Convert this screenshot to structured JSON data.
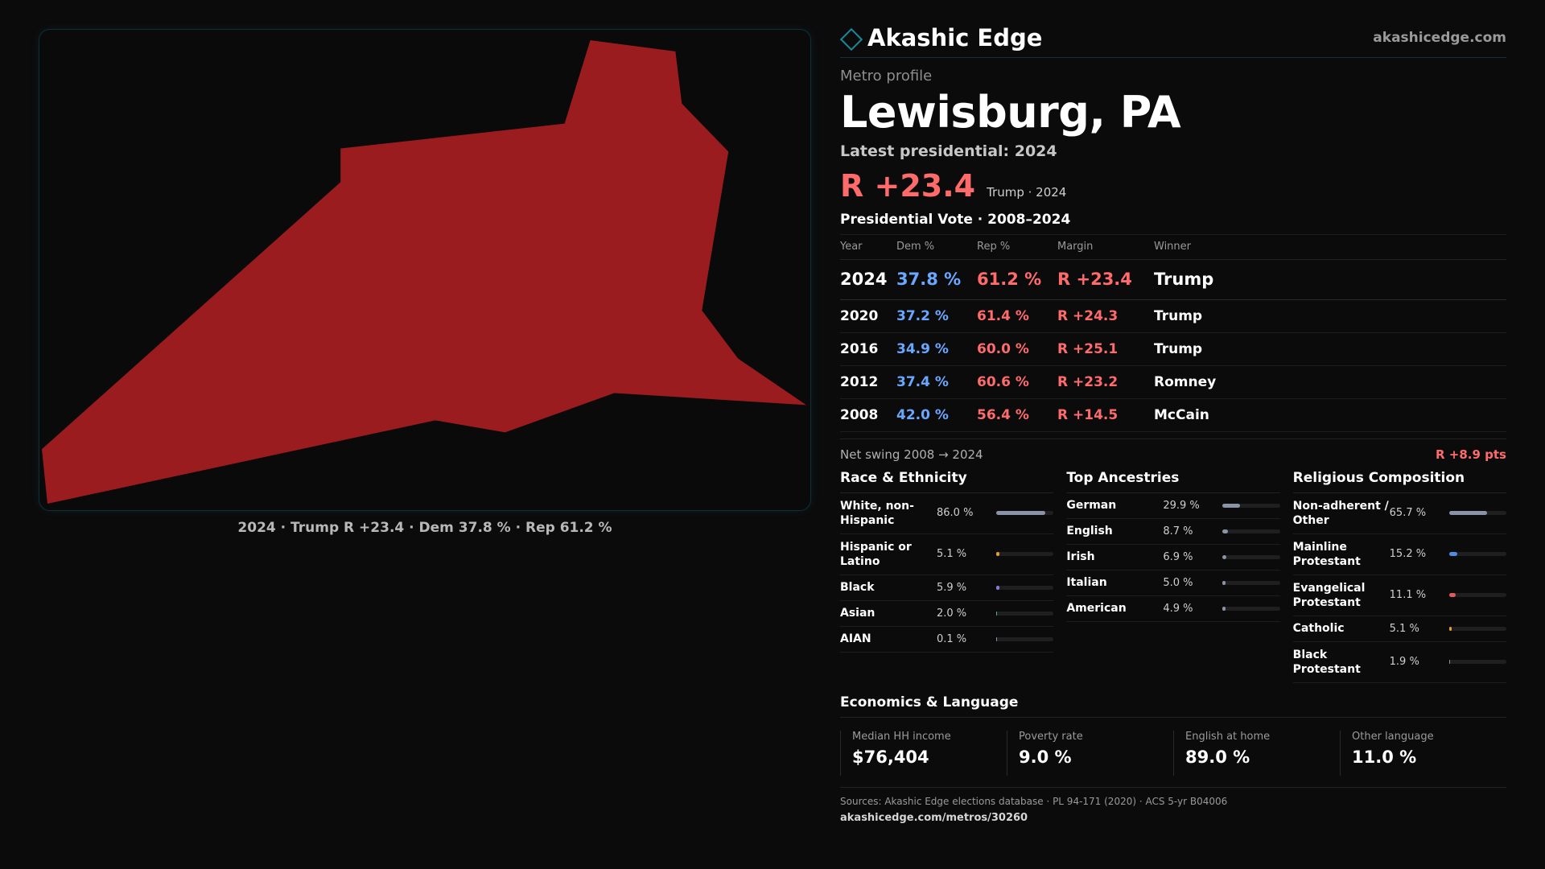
{
  "brand": {
    "name": "Akashic Edge",
    "url": "akashicedge.com"
  },
  "map": {
    "fill_color": "#9b1c1f",
    "caption": "2024 · Trump R +23.4 · Dem 37.8 % · Rep 61.2 %"
  },
  "header": {
    "eyebrow": "Metro profile",
    "title": "Lewisburg, PA",
    "latest": "Latest presidential: 2024",
    "margin": "R +23.4",
    "margin_sub": "Trump · 2024"
  },
  "votes": {
    "title": "Presidential Vote · 2008–2024",
    "columns": [
      "Year",
      "Dem %",
      "Rep %",
      "Margin",
      "Winner"
    ],
    "rows": [
      {
        "year": "2024",
        "dem": "37.8 %",
        "rep": "61.2 %",
        "margin": "R +23.4",
        "winner": "Trump"
      },
      {
        "year": "2020",
        "dem": "37.2 %",
        "rep": "61.4 %",
        "margin": "R +24.3",
        "winner": "Trump"
      },
      {
        "year": "2016",
        "dem": "34.9 %",
        "rep": "60.0 %",
        "margin": "R +25.1",
        "winner": "Trump"
      },
      {
        "year": "2012",
        "dem": "37.4 %",
        "rep": "60.6 %",
        "margin": "R +23.2",
        "winner": "Romney"
      },
      {
        "year": "2008",
        "dem": "42.0 %",
        "rep": "56.4 %",
        "margin": "R +14.5",
        "winner": "McCain"
      }
    ],
    "swing_label": "Net swing 2008 → 2024",
    "swing_value": "R +8.9 pts"
  },
  "race": {
    "title": "Race & Ethnicity",
    "items": [
      {
        "name": "White, non-Hispanic",
        "value": "86.0 %",
        "pct": 86.0,
        "color": "#8a94a6"
      },
      {
        "name": "Hispanic or Latino",
        "value": "5.1 %",
        "pct": 5.1,
        "color": "#e0a030"
      },
      {
        "name": "Black",
        "value": "5.9 %",
        "pct": 5.9,
        "color": "#8a7ad8"
      },
      {
        "name": "Asian",
        "value": "2.0 %",
        "pct": 2.0,
        "color": "#3ab8a0"
      },
      {
        "name": "AIAN",
        "value": "0.1 %",
        "pct": 0.1,
        "color": "#8a94a6"
      }
    ]
  },
  "ancestry": {
    "title": "Top Ancestries",
    "items": [
      {
        "name": "German",
        "value": "29.9 %",
        "pct": 29.9,
        "color": "#8a94a6"
      },
      {
        "name": "English",
        "value": "8.7 %",
        "pct": 8.7,
        "color": "#8a94a6"
      },
      {
        "name": "Irish",
        "value": "6.9 %",
        "pct": 6.9,
        "color": "#8a94a6"
      },
      {
        "name": "Italian",
        "value": "5.0 %",
        "pct": 5.0,
        "color": "#8a94a6"
      },
      {
        "name": "American",
        "value": "4.9 %",
        "pct": 4.9,
        "color": "#8a94a6"
      }
    ]
  },
  "religion": {
    "title": "Religious Composition",
    "items": [
      {
        "name": "Non-adherent / Other",
        "value": "65.7 %",
        "pct": 65.7,
        "color": "#8a94a6"
      },
      {
        "name": "Mainline Protestant",
        "value": "15.2 %",
        "pct": 15.2,
        "color": "#4a90e2"
      },
      {
        "name": "Evangelical Protestant",
        "value": "11.1 %",
        "pct": 11.1,
        "color": "#e05a5a"
      },
      {
        "name": "Catholic",
        "value": "5.1 %",
        "pct": 5.1,
        "color": "#e0a030"
      },
      {
        "name": "Black Protestant",
        "value": "1.9 %",
        "pct": 1.9,
        "color": "#8a94a6"
      }
    ]
  },
  "economics": {
    "title": "Economics & Language",
    "cells": [
      {
        "label": "Median HH income",
        "value": "$76,404"
      },
      {
        "label": "Poverty rate",
        "value": "9.0 %"
      },
      {
        "label": "English at home",
        "value": "89.0 %"
      },
      {
        "label": "Other language",
        "value": "11.0 %"
      }
    ]
  },
  "footer": {
    "sources": "Sources: Akashic Edge elections database · PL 94-171 (2020) · ACS 5-yr B04006",
    "link": "akashicedge.com/metros/30260"
  }
}
